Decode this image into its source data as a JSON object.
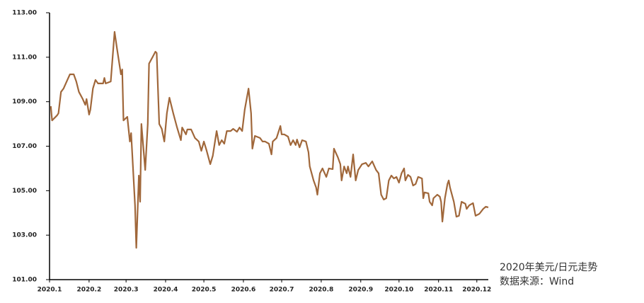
{
  "chart_data": {
    "type": "line",
    "annotations": [
      "2020年美元/日元走势",
      "数据来源：Wind"
    ],
    "x": [
      1,
      2,
      6,
      7,
      9,
      11,
      14,
      16,
      19,
      21,
      23,
      26,
      28,
      29,
      31,
      32,
      34,
      36,
      38,
      42,
      43,
      44,
      48,
      51,
      53,
      56,
      57,
      58,
      61,
      63,
      64,
      67,
      68,
      70,
      71,
      72,
      75,
      77,
      78,
      81,
      83,
      84,
      86,
      88,
      90,
      92,
      94,
      97,
      100,
      103,
      104,
      107,
      108,
      111,
      114,
      117,
      119,
      121,
      123,
      126,
      128,
      131,
      133,
      135,
      137,
      139,
      142,
      144,
      147,
      149,
      151,
      153,
      156,
      158,
      159,
      161,
      165,
      167,
      169,
      172,
      174,
      175,
      178,
      181,
      182,
      184,
      187,
      189,
      191,
      193,
      194,
      196,
      198,
      201,
      203,
      204,
      207,
      209,
      210,
      212,
      214,
      217,
      219,
      222,
      223,
      226,
      228,
      229,
      231,
      233,
      234,
      236,
      238,
      240,
      242,
      245,
      248,
      250,
      253,
      256,
      258,
      260,
      262,
      264,
      266,
      268,
      270,
      272,
      274,
      276,
      278,
      279,
      281,
      283,
      285,
      287,
      289,
      292,
      293,
      294,
      297,
      298,
      300,
      301,
      304,
      306,
      307,
      308,
      310,
      312,
      313,
      314,
      317,
      319,
      321,
      323,
      326,
      327,
      329,
      332,
      334,
      337,
      340,
      342,
      344
    ],
    "series": [
      {
        "color": "#a0673a",
        "values": [
          108.8,
          108.16,
          108.39,
          108.48,
          109.44,
          109.59,
          109.98,
          110.23,
          110.23,
          109.91,
          109.44,
          109.12,
          108.86,
          109.12,
          108.42,
          108.64,
          109.59,
          109.98,
          109.82,
          109.82,
          110.07,
          109.82,
          109.91,
          112.14,
          111.35,
          110.23,
          110.45,
          108.16,
          108.32,
          107.21,
          107.59,
          104.34,
          102.43,
          105.68,
          104.5,
          108.0,
          105.93,
          108.0,
          110.71,
          111.03,
          111.25,
          111.19,
          108.0,
          107.78,
          107.21,
          108.48,
          109.18,
          108.48,
          107.84,
          107.27,
          107.84,
          107.53,
          107.75,
          107.75,
          107.37,
          107.21,
          106.79,
          107.21,
          106.83,
          106.19,
          106.57,
          107.68,
          107.05,
          107.27,
          107.11,
          107.68,
          107.68,
          107.78,
          107.65,
          107.84,
          107.68,
          108.64,
          109.59,
          108.48,
          106.89,
          107.46,
          107.37,
          107.21,
          107.21,
          107.11,
          106.63,
          107.21,
          107.37,
          107.91,
          107.53,
          107.53,
          107.43,
          107.05,
          107.27,
          107.05,
          107.3,
          106.95,
          107.27,
          107.21,
          106.73,
          106.09,
          105.46,
          105.14,
          104.82,
          105.78,
          106.0,
          105.62,
          106.0,
          105.97,
          106.89,
          106.51,
          106.19,
          105.46,
          106.09,
          105.78,
          106.09,
          105.62,
          106.63,
          105.46,
          105.93,
          106.19,
          106.25,
          106.09,
          106.32,
          105.93,
          105.78,
          104.82,
          104.6,
          104.66,
          105.46,
          105.68,
          105.55,
          105.62,
          105.36,
          105.78,
          106.0,
          105.46,
          105.71,
          105.62,
          105.23,
          105.3,
          105.62,
          105.55,
          104.66,
          104.92,
          104.88,
          104.5,
          104.34,
          104.66,
          104.82,
          104.73,
          104.5,
          103.61,
          104.66,
          105.3,
          105.46,
          105.14,
          104.5,
          103.83,
          103.87,
          104.5,
          104.41,
          104.18,
          104.34,
          104.44,
          103.87,
          103.96,
          104.18,
          104.28,
          104.25
        ]
      }
    ],
    "xlim": [
      0,
      344
    ],
    "xticks": [
      {
        "value": 0,
        "label": "2020.1"
      },
      {
        "value": 31,
        "label": "2020.2"
      },
      {
        "value": 60,
        "label": "2020.3"
      },
      {
        "value": 91,
        "label": "2020.4"
      },
      {
        "value": 121,
        "label": "2020.5"
      },
      {
        "value": 152,
        "label": "2020.6"
      },
      {
        "value": 182,
        "label": "2020.7"
      },
      {
        "value": 213,
        "label": "2020.8"
      },
      {
        "value": 244,
        "label": "2020.9"
      },
      {
        "value": 274,
        "label": "2020.10"
      },
      {
        "value": 305,
        "label": "2020.11"
      },
      {
        "value": 335,
        "label": "2020.12"
      }
    ],
    "ylim": [
      101,
      113
    ],
    "yticks": [
      {
        "value": 101,
        "label": "101.00"
      },
      {
        "value": 103,
        "label": "103.00"
      },
      {
        "value": 105,
        "label": "105.00"
      },
      {
        "value": 107,
        "label": "107.00"
      },
      {
        "value": 109,
        "label": "109.00"
      },
      {
        "value": 111,
        "label": "111.00"
      },
      {
        "value": 113,
        "label": "113.00"
      }
    ],
    "grid": false
  }
}
